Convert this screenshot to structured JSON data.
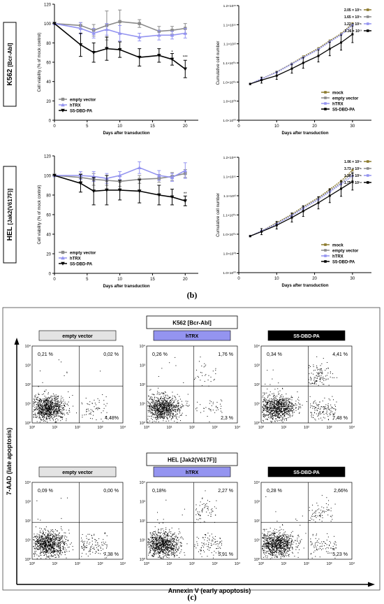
{
  "panel_labels": {
    "b": "(b)",
    "c": "(c)"
  },
  "row_labels": {
    "top": {
      "name": "K562",
      "sub": "[Bcr-Abl]"
    },
    "bottom": {
      "name": "HEL",
      "sub": "[Jak2(V617F)]"
    }
  },
  "colors": {
    "empty": "#8a8a8a",
    "htrx": "#9494f0",
    "s5": "#000000",
    "mock": "#8c7a2c"
  },
  "chart_data": [
    {
      "id": "k562-viability",
      "type": "line",
      "xlabel": "Days after transduction",
      "ylabel": "Cell viability (% of mock control)",
      "xlim": [
        0,
        22
      ],
      "ylim": [
        0,
        120
      ],
      "xticks": [
        0,
        5,
        10,
        15,
        20
      ],
      "yticks": [
        0,
        20,
        40,
        60,
        80,
        100,
        120
      ],
      "legend": [
        "empty vector",
        "hTRX",
        "S5-DBD-PA"
      ],
      "series": [
        {
          "name": "empty vector",
          "color": "#8a8a8a",
          "x": [
            0,
            4,
            6,
            8,
            10,
            13,
            16,
            18,
            20
          ],
          "y": [
            100,
            98,
            93,
            98,
            102,
            100,
            92,
            93,
            95
          ],
          "err": [
            0,
            3,
            6,
            15,
            12,
            4,
            5,
            4,
            5
          ]
        },
        {
          "name": "hTRX",
          "color": "#9494f0",
          "x": [
            0,
            4,
            6,
            8,
            10,
            13,
            16,
            18,
            20
          ],
          "y": [
            100,
            95,
            90,
            94,
            90,
            86,
            88,
            88,
            90
          ],
          "err": [
            0,
            6,
            5,
            6,
            8,
            4,
            5,
            4,
            5
          ]
        },
        {
          "name": "S5-DBD-PA",
          "color": "#000000",
          "x": [
            0,
            4,
            6,
            8,
            10,
            13,
            16,
            18,
            20
          ],
          "y": [
            100,
            78,
            70,
            74,
            73,
            65,
            67,
            63,
            53
          ],
          "err": [
            0,
            12,
            10,
            12,
            8,
            9,
            7,
            6,
            9
          ]
        }
      ],
      "annotations": [
        {
          "x": 18,
          "y": 69,
          "text": "*"
        },
        {
          "x": 20,
          "y": 64,
          "text": "***"
        }
      ]
    },
    {
      "id": "k562-cumulative",
      "type": "line",
      "xlabel": "Days after transduction",
      "ylabel": "Cumulative cell number",
      "xlim": [
        0,
        35
      ],
      "ylim_exp": [
        0,
        18
      ],
      "xticks": [
        0,
        10,
        20,
        30
      ],
      "yticks": [
        "1.0×10⁰⁰",
        "1.0×10⁰³",
        "1.0×10⁰⁶",
        "1.1×10⁰⁹",
        "1.1×10¹²",
        "1.1×10¹⁵",
        "1.2×10¹⁸"
      ],
      "legend": [
        "mock",
        "empty vector",
        "hTRX",
        "S5-DBD-PA"
      ],
      "endpoint_labels": [
        "2.05 × 10¹⁵",
        "1.65 × 10¹⁵",
        "1.22 × 10¹⁵",
        "3.36 × 10¹³"
      ],
      "series": [
        {
          "name": "mock",
          "color": "#8c7a2c",
          "x": [
            3,
            6,
            10,
            14,
            17,
            21,
            24,
            27,
            30
          ],
          "y": [
            5.7,
            6.5,
            7.6,
            8.9,
            10.0,
            11.3,
            12.5,
            13.6,
            15.2
          ]
        },
        {
          "name": "empty vector",
          "color": "#8a8a8a",
          "x": [
            3,
            6,
            10,
            14,
            17,
            21,
            24,
            27,
            30
          ],
          "y": [
            5.7,
            6.5,
            7.6,
            8.9,
            9.9,
            11.2,
            12.4,
            13.5,
            15.1
          ]
        },
        {
          "name": "hTRX",
          "color": "#9494f0",
          "x": [
            3,
            6,
            10,
            14,
            17,
            21,
            24,
            27,
            30
          ],
          "y": [
            5.7,
            6.5,
            7.5,
            8.8,
            9.8,
            11.1,
            12.3,
            13.4,
            14.9
          ]
        },
        {
          "name": "S5-DBD-PA",
          "color": "#000000",
          "x": [
            3,
            6,
            10,
            14,
            17,
            21,
            24,
            27,
            30
          ],
          "y": [
            5.7,
            6.3,
            7.0,
            8.1,
            9.0,
            10.1,
            11.2,
            12.2,
            13.5
          ]
        }
      ]
    },
    {
      "id": "hel-viability",
      "type": "line",
      "xlabel": "Days after transduction",
      "ylabel": "Cell viability (% of mock control)",
      "xlim": [
        0,
        22
      ],
      "ylim": [
        0,
        120
      ],
      "xticks": [
        0,
        5,
        10,
        15,
        20
      ],
      "yticks": [
        0,
        20,
        40,
        60,
        80,
        100,
        120
      ],
      "legend": [
        "empty vector",
        "hTRX",
        "S5-DBD-PA"
      ],
      "series": [
        {
          "name": "empty vector",
          "color": "#8a8a8a",
          "x": [
            0,
            4,
            6,
            8,
            10,
            13,
            16,
            18,
            20
          ],
          "y": [
            100,
            98,
            96,
            95,
            94,
            96,
            97,
            99,
            102
          ],
          "err": [
            0,
            4,
            6,
            5,
            5,
            4,
            4,
            4,
            4
          ]
        },
        {
          "name": "hTRX",
          "color": "#9494f0",
          "x": [
            0,
            4,
            6,
            8,
            10,
            13,
            16,
            18,
            20
          ],
          "y": [
            100,
            100,
            99,
            97,
            100,
            108,
            100,
            98,
            105
          ],
          "err": [
            0,
            4,
            5,
            5,
            4,
            6,
            5,
            4,
            8
          ]
        },
        {
          "name": "S5-DBD-PA",
          "color": "#000000",
          "x": [
            0,
            4,
            6,
            8,
            10,
            13,
            16,
            18,
            20
          ],
          "y": [
            100,
            92,
            84,
            85,
            85,
            84,
            80,
            78,
            74
          ],
          "err": [
            0,
            9,
            14,
            15,
            10,
            12,
            10,
            8,
            5
          ]
        }
      ],
      "annotations": [
        {
          "x": 20,
          "y": 80,
          "text": "**"
        }
      ]
    },
    {
      "id": "hel-cumulative",
      "type": "line",
      "xlabel": "Days after transduction",
      "ylabel": "Cumulative cell number",
      "xlim": [
        0,
        35
      ],
      "ylim_exp": [
        0,
        18
      ],
      "xticks": [
        0,
        10,
        20,
        30
      ],
      "yticks": [
        "1.0×10⁰⁰",
        "1.0×10⁰³",
        "1.0×10⁰⁶",
        "1.1×10⁰⁹",
        "1.1×10¹²",
        "1.1×10¹⁵",
        "1.2×10¹⁸"
      ],
      "legend": [
        "mock",
        "empty vector",
        "hTRX",
        "S5-DBD-PA"
      ],
      "endpoint_labels": [
        "1.06 × 10¹⁶",
        "3.73 × 10¹⁵",
        "1.28 × 10¹⁵",
        "1.75 × 10¹⁴"
      ],
      "series": [
        {
          "name": "mock",
          "color": "#8c7a2c",
          "x": [
            3,
            6,
            10,
            14,
            17,
            21,
            24,
            27,
            30
          ],
          "y": [
            5.7,
            6.5,
            7.8,
            9.1,
            10.3,
            11.7,
            13.0,
            14.3,
            16.0
          ]
        },
        {
          "name": "empty vector",
          "color": "#8a8a8a",
          "x": [
            3,
            6,
            10,
            14,
            17,
            21,
            24,
            27,
            30
          ],
          "y": [
            5.7,
            6.5,
            7.7,
            9.0,
            10.2,
            11.6,
            12.8,
            14.0,
            15.6
          ]
        },
        {
          "name": "hTRX",
          "color": "#9494f0",
          "x": [
            3,
            6,
            10,
            14,
            17,
            21,
            24,
            27,
            30
          ],
          "y": [
            5.7,
            6.5,
            7.6,
            8.9,
            10.0,
            11.4,
            12.6,
            13.8,
            15.1
          ]
        },
        {
          "name": "S5-DBD-PA",
          "color": "#000000",
          "x": [
            3,
            6,
            10,
            14,
            17,
            21,
            24,
            27,
            30
          ],
          "y": [
            5.7,
            6.4,
            7.4,
            8.6,
            9.6,
            10.9,
            12.0,
            13.1,
            14.2
          ]
        }
      ]
    },
    {
      "id": "flow-cytometry",
      "type": "scatter",
      "xlabel": "Annexin V (early apoptosis)",
      "ylabel": "7-AAD (late apoptosis)",
      "axis_ticks": [
        "10⁰",
        "10¹",
        "10²",
        "10³",
        "10⁴"
      ],
      "groups": [
        {
          "label": "K562 [Bcr-Abl]",
          "plots": [
            {
              "condition": "empty vector",
              "q_ul": "0,21 %",
              "q_ur": "0,02 %",
              "q_lr": "4,48%",
              "q_ll": ""
            },
            {
              "condition": "hTRX",
              "q_ul": "0,26 %",
              "q_ur": "1,76 %",
              "q_lr": "2,3 %",
              "q_ll": ""
            },
            {
              "condition": "S5-DBD-PA",
              "q_ul": "0,34 %",
              "q_ur": "4,41 %",
              "q_lr": "7,48 %",
              "q_ll": ""
            }
          ]
        },
        {
          "label": "HEL [Jak2(V617F)]",
          "plots": [
            {
              "condition": "empty vector",
              "q_ul": "0,09 %",
              "q_ur": "0,00 %",
              "q_lr": "7,38 %",
              "q_ll": ""
            },
            {
              "condition": "hTRX",
              "q_ul": "0,18%",
              "q_ur": "2,27 %",
              "q_lr": "5,91 %",
              "q_ll": ""
            },
            {
              "condition": "S5-DBD-PA",
              "q_ul": "0,28 %",
              "q_ur": "2,66%",
              "q_lr": "5,23 %",
              "q_ll": ""
            }
          ]
        }
      ]
    }
  ]
}
